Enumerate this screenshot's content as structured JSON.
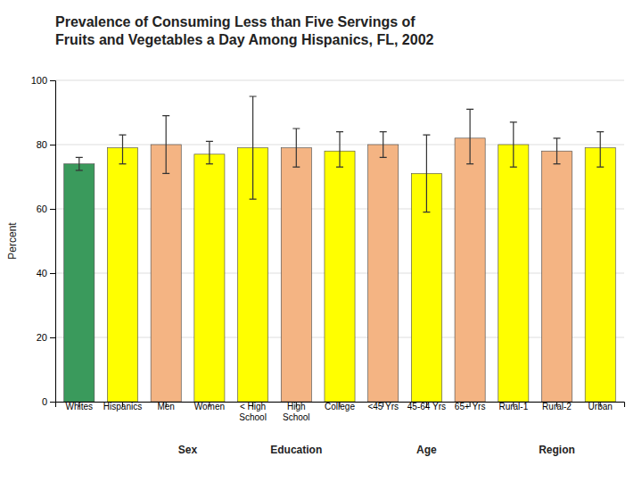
{
  "chart_data": {
    "type": "bar",
    "title": "Prevalence of Consuming Less than Five Servings of\nFruits and Vegetables a Day Among Hispanics, FL, 2002",
    "ylabel": "Percent",
    "categories": [
      "Whites",
      "Hispanics",
      "Men",
      "Women",
      "< High\nSchool",
      "High\nSchool",
      "College",
      "<45 Yrs",
      "45-64 Yrs",
      "65+ Yrs",
      "Rural-1",
      "Rural-2",
      "Urban"
    ],
    "groups": [
      null,
      null,
      "Sex",
      "Sex",
      "Education",
      "Education",
      "Education",
      "Age",
      "Age",
      "Age",
      "Region",
      "Region",
      "Region"
    ],
    "values": [
      74,
      79,
      80,
      77,
      79,
      79,
      78,
      80,
      71,
      82,
      80,
      78,
      79
    ],
    "error_low": [
      2,
      5,
      9,
      3,
      16,
      6,
      5,
      4,
      12,
      8,
      7,
      4,
      6
    ],
    "error_high": [
      2,
      4,
      9,
      4,
      16,
      6,
      6,
      4,
      12,
      9,
      7,
      4,
      5
    ],
    "colors": [
      "#3a9a5c",
      "#ffff00",
      "#f4b483",
      "#ffff00",
      "#ffff00",
      "#f4b483",
      "#ffff00",
      "#f4b483",
      "#ffff00",
      "#f4b483",
      "#ffff00",
      "#f4b483",
      "#ffff00"
    ],
    "ylim": [
      0,
      100
    ],
    "yticks": [
      0,
      20,
      40,
      60,
      80,
      100
    ],
    "grid": true
  }
}
